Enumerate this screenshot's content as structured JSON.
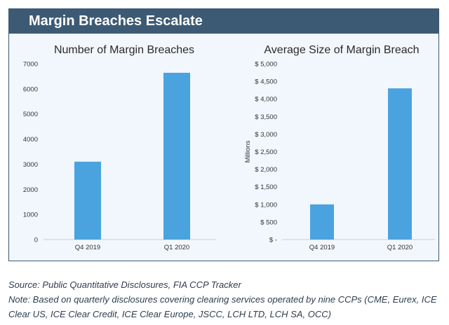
{
  "header": {
    "title": "Margin Breaches Escalate"
  },
  "chart_data": [
    {
      "type": "bar",
      "title": "Number of Margin Breaches",
      "categories": [
        "Q4 2019",
        "Q1 2020"
      ],
      "values": [
        3100,
        6640
      ],
      "ylim": [
        0,
        7000
      ],
      "yticks": [
        0,
        1000,
        2000,
        3000,
        4000,
        5000,
        6000,
        7000
      ],
      "ytick_labels": [
        "0",
        "1000",
        "2000",
        "3000",
        "4000",
        "5000",
        "6000",
        "7000"
      ],
      "xlabel": "",
      "ylabel": "",
      "grid": false,
      "color": "#4aa3df"
    },
    {
      "type": "bar",
      "title": "Average Size of Margin Breach",
      "categories": [
        "Q4 2019",
        "Q1 2020"
      ],
      "values": [
        1000,
        4300
      ],
      "ylim": [
        0,
        5000
      ],
      "yticks": [
        0,
        500,
        1000,
        1500,
        2000,
        2500,
        3000,
        3500,
        4000,
        4500,
        5000
      ],
      "ytick_labels": [
        "$ -",
        "$ 500",
        "$ 1,000",
        "$ 1,500",
        "$ 2,000",
        "$ 2,500",
        "$ 3,000",
        "$ 3,500",
        "$ 4,000",
        "$ 4,500",
        "$ 5,000"
      ],
      "xlabel": "",
      "ylabel": "Millions",
      "grid": false,
      "color": "#4aa3df"
    }
  ],
  "footer": {
    "source": "Source: Public Quantitative Disclosures, FIA CCP Tracker",
    "note": "Note: Based on quarterly disclosures covering clearing services operated by nine CCPs (CME, Eurex, ICE Clear US, ICE Clear Credit, ICE Clear Europe, JSCC, LCH LTD, LCH SA, OCC)"
  }
}
